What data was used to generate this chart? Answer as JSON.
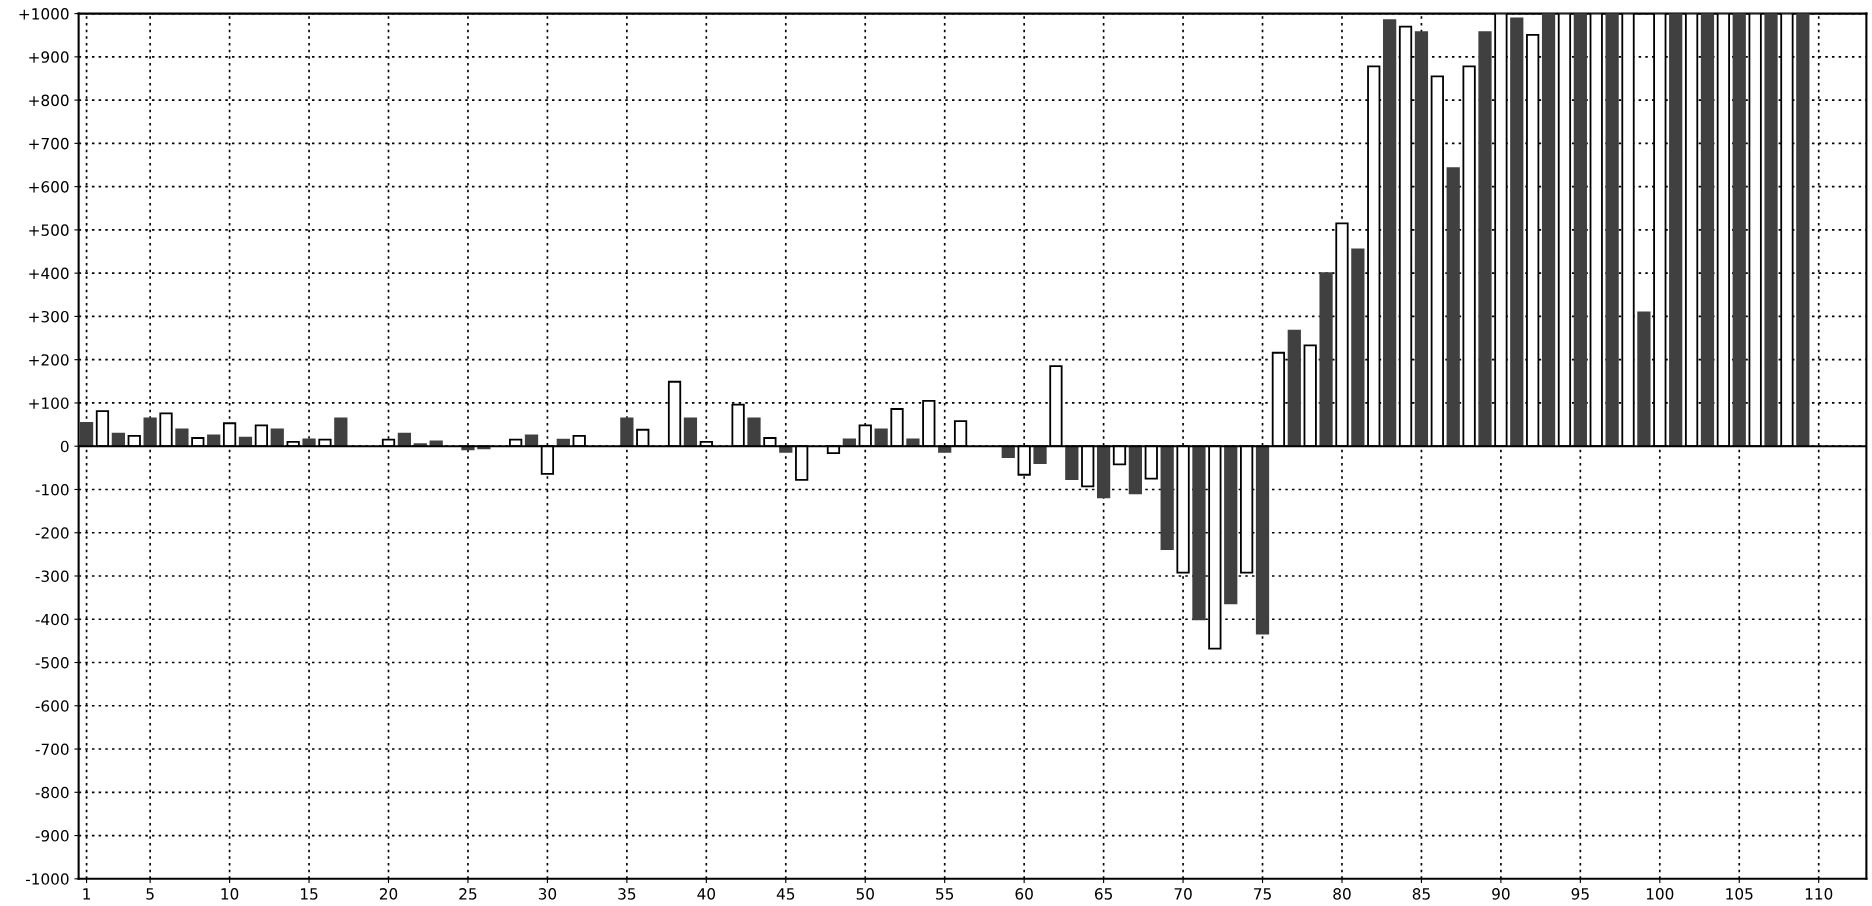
{
  "chart_data": {
    "type": "bar",
    "x": [
      1,
      2,
      3,
      4,
      5,
      6,
      7,
      8,
      9,
      10,
      11,
      12,
      13,
      14,
      15,
      16,
      17,
      18,
      19,
      20,
      21,
      22,
      23,
      24,
      25,
      26,
      27,
      28,
      29,
      30,
      31,
      32,
      33,
      34,
      35,
      36,
      37,
      38,
      39,
      40,
      41,
      42,
      43,
      44,
      45,
      46,
      47,
      48,
      49,
      50,
      51,
      52,
      53,
      54,
      55,
      56,
      57,
      58,
      59,
      60,
      61,
      62,
      63,
      64,
      65,
      66,
      67,
      68,
      69,
      70,
      71,
      72,
      73,
      74,
      75,
      76,
      77,
      78,
      79,
      80,
      81,
      82,
      83,
      84,
      85,
      86,
      87,
      88,
      89,
      90,
      91,
      92,
      93,
      94,
      95,
      96,
      97,
      98,
      99,
      100,
      101,
      102,
      103,
      104,
      105,
      106,
      107,
      108,
      109
    ],
    "values": [
      54,
      81,
      29,
      24,
      64,
      76,
      39,
      19,
      25,
      53,
      20,
      48,
      39,
      10,
      16,
      15,
      64,
      0,
      0,
      15,
      29,
      5,
      11,
      0,
      -7,
      -5,
      0,
      15,
      25,
      -64,
      15,
      24,
      0,
      0,
      64,
      38,
      0,
      149,
      64,
      10,
      0,
      96,
      64,
      19,
      -13,
      -78,
      0,
      -16,
      16,
      48,
      39,
      86,
      16,
      105,
      -13,
      58,
      0,
      0,
      -25,
      -66,
      -39,
      185,
      -76,
      -93,
      -118,
      -42,
      -109,
      -75,
      -238,
      -292,
      -400,
      -468,
      -363,
      -292,
      -433,
      216,
      267,
      233,
      400,
      515,
      455,
      878,
      985,
      970,
      957,
      855,
      643,
      878,
      957,
      1000,
      989,
      951,
      1000,
      1000,
      1000,
      1000,
      1000,
      1000,
      309,
      1000,
      1000,
      1000,
      1000,
      1000,
      1000,
      1000,
      1000,
      1000,
      1000
    ],
    "colors": [
      "#404040",
      "#ffffff",
      "#404040",
      "#ffffff",
      "#404040",
      "#ffffff",
      "#404040",
      "#ffffff",
      "#404040",
      "#ffffff",
      "#404040",
      "#ffffff",
      "#404040",
      "#ffffff",
      "#404040",
      "#ffffff",
      "#404040",
      "#ffffff",
      "#404040",
      "#ffffff",
      "#404040",
      "#404040",
      "#404040",
      "#ffffff",
      "#404040",
      "#404040",
      "#ffffff",
      "#ffffff",
      "#404040",
      "#ffffff",
      "#404040",
      "#ffffff",
      "#404040",
      "#ffffff",
      "#404040",
      "#ffffff",
      "#404040",
      "#ffffff",
      "#404040",
      "#ffffff",
      "#404040",
      "#ffffff",
      "#404040",
      "#ffffff",
      "#404040",
      "#ffffff",
      "#404040",
      "#ffffff",
      "#404040",
      "#ffffff",
      "#404040",
      "#ffffff",
      "#404040",
      "#ffffff",
      "#404040",
      "#ffffff",
      "#404040",
      "#ffffff",
      "#404040",
      "#ffffff",
      "#404040",
      "#ffffff",
      "#404040",
      "#ffffff",
      "#404040",
      "#ffffff",
      "#404040",
      "#ffffff",
      "#404040",
      "#ffffff",
      "#404040",
      "#ffffff",
      "#404040",
      "#ffffff",
      "#404040",
      "#ffffff",
      "#404040",
      "#ffffff",
      "#404040",
      "#ffffff",
      "#404040",
      "#ffffff",
      "#404040",
      "#ffffff",
      "#404040",
      "#ffffff",
      "#404040",
      "#ffffff",
      "#404040",
      "#ffffff",
      "#404040",
      "#ffffff",
      "#404040",
      "#ffffff",
      "#404040",
      "#ffffff",
      "#404040",
      "#ffffff",
      "#404040",
      "#ffffff",
      "#404040",
      "#ffffff",
      "#404040",
      "#ffffff",
      "#404040",
      "#ffffff",
      "#404040",
      "#ffffff",
      "#404040"
    ],
    "xlim": [
      0.5,
      113
    ],
    "xticks": [
      1,
      5,
      10,
      15,
      20,
      25,
      30,
      35,
      40,
      45,
      50,
      55,
      60,
      65,
      70,
      75,
      80,
      85,
      90,
      95,
      100,
      105,
      110
    ],
    "ylim": [
      -1000,
      1000
    ],
    "yticks": [
      {
        "value": -1000,
        "label": "-1000"
      },
      {
        "value": -900,
        "label": "-900"
      },
      {
        "value": -800,
        "label": "-800"
      },
      {
        "value": -700,
        "label": "-700"
      },
      {
        "value": -600,
        "label": "-600"
      },
      {
        "value": -500,
        "label": "-500"
      },
      {
        "value": -400,
        "label": "-400"
      },
      {
        "value": -300,
        "label": "-300"
      },
      {
        "value": -200,
        "label": "-200"
      },
      {
        "value": -100,
        "label": "-100"
      },
      0,
      {
        "value": 100,
        "label": "+100"
      },
      {
        "value": 200,
        "label": "+200"
      },
      {
        "value": 300,
        "label": "+300"
      },
      {
        "value": 400,
        "label": "+400"
      },
      {
        "value": 500,
        "label": "+500"
      },
      {
        "value": 600,
        "label": "+600"
      },
      {
        "value": 700,
        "label": "+700"
      },
      {
        "value": 800,
        "label": "+800"
      },
      {
        "value": 900,
        "label": "+900"
      },
      {
        "value": 1000,
        "label": "+1000"
      }
    ],
    "ref_lines": [
      {
        "axis": "y",
        "value": 0,
        "color": "#000000",
        "line_style": "solid"
      }
    ],
    "grid": true,
    "legend": false
  }
}
